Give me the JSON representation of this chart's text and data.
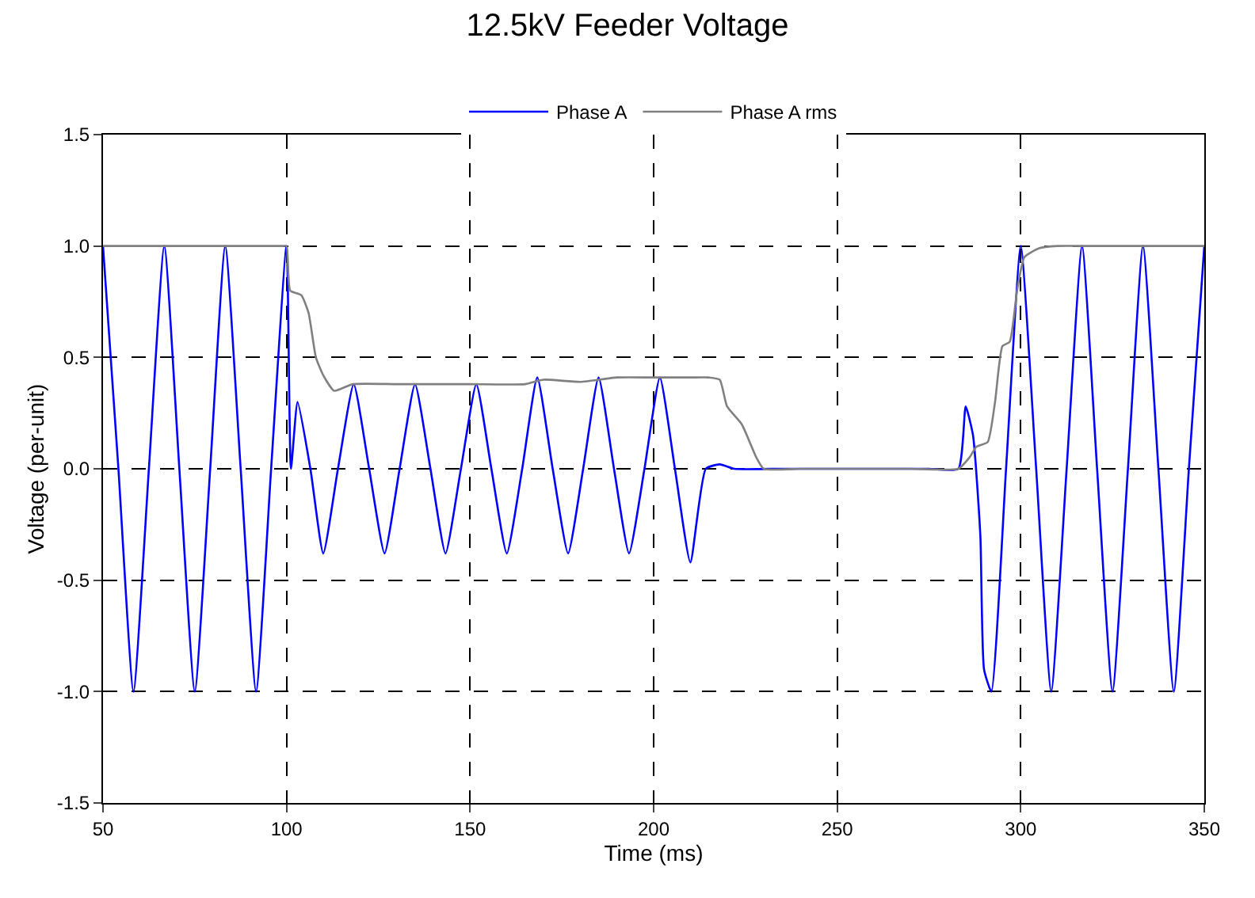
{
  "chart_data": {
    "type": "line",
    "title": "12.5kV Feeder Voltage",
    "xlabel": "Time (ms)",
    "ylabel": "Voltage (per-unit)",
    "xlim": [
      50,
      350
    ],
    "xticks": [
      50,
      100,
      150,
      200,
      250,
      300,
      350
    ],
    "ylim": [
      -1.5,
      1.5
    ],
    "yticks": [
      -1.5,
      {
        "value": -1,
        "label": "-1.0"
      },
      -0.5,
      {
        "value": 0,
        "label": "0.0"
      },
      0.5,
      {
        "value": 1,
        "label": "1.0"
      },
      1.5
    ],
    "grid": true,
    "legend": "top",
    "marker": "none",
    "line_style": "solid",
    "series": [
      {
        "name": "Phase A",
        "color": "#0000ff",
        "x": [
          50,
          54.2,
          58.3,
          62.5,
          66.7,
          70.8,
          75,
          79.2,
          83.3,
          87.5,
          91.7,
          95.8,
          100,
          101.2,
          103,
          106.5,
          110,
          114,
          118.3,
          122.5,
          126.7,
          130.8,
          135,
          139.2,
          143.3,
          147.5,
          151.7,
          155.8,
          160,
          164.2,
          168.3,
          172.5,
          176.7,
          180.8,
          185,
          189.2,
          193.3,
          197.5,
          201.7,
          205.8,
          210,
          214.2,
          218,
          222,
          235,
          250,
          265,
          275,
          283,
          285,
          287,
          289,
          290,
          292,
          296,
          300,
          304.2,
          308.3,
          312.5,
          316.7,
          320.8,
          325,
          329.2,
          333.3,
          337.5,
          341.7,
          345.8,
          350
        ],
        "values": [
          1,
          0,
          -1,
          0,
          1,
          0,
          -1,
          0,
          1,
          0,
          -1,
          0,
          1,
          0,
          0.3,
          0,
          -0.38,
          0,
          0.38,
          0,
          -0.38,
          0,
          0.38,
          0,
          -0.38,
          0,
          0.38,
          0,
          -0.38,
          0,
          0.41,
          0,
          -0.38,
          0,
          0.41,
          0,
          -0.38,
          0,
          0.41,
          0,
          -0.42,
          0,
          0.02,
          0,
          0,
          0,
          0,
          0,
          0,
          0.28,
          0.15,
          -0.3,
          -0.9,
          -1,
          0,
          1,
          0,
          -1,
          0,
          1,
          0,
          -1,
          0,
          1,
          0,
          -1,
          0,
          1
        ]
      },
      {
        "name": "Phase A rms",
        "color": "#808080",
        "x": [
          50,
          60,
          70,
          80,
          90,
          99,
          100,
          101,
          104,
          106,
          108,
          110,
          113,
          118,
          130,
          140,
          150,
          165,
          170,
          180,
          190,
          200,
          210,
          215,
          218,
          220,
          224,
          228,
          230,
          240,
          250,
          260,
          270,
          283,
          286,
          288,
          291,
          293,
          295,
          297,
          299,
          301,
          305,
          310,
          320,
          330,
          340,
          350
        ],
        "values": [
          1,
          1,
          1,
          1,
          1,
          1,
          1,
          0.8,
          0.78,
          0.7,
          0.5,
          0.42,
          0.35,
          0.38,
          0.38,
          0.38,
          0.38,
          0.38,
          0.4,
          0.39,
          0.41,
          0.41,
          0.41,
          0.41,
          0.4,
          0.28,
          0.2,
          0.05,
          0,
          0,
          0,
          0,
          0,
          0,
          0.05,
          0.1,
          0.12,
          0.3,
          0.55,
          0.57,
          0.8,
          0.95,
          0.99,
          1,
          1,
          1,
          1,
          1
        ]
      }
    ]
  }
}
